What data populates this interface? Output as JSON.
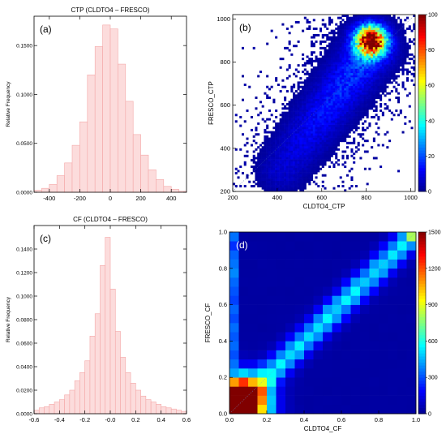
{
  "colorbar_colors": [
    "#00008f",
    "#0000ff",
    "#0080ff",
    "#00ffff",
    "#80ff80",
    "#ffff00",
    "#ff8000",
    "#ff0000",
    "#800000"
  ],
  "chart_data": [
    {
      "id": "a",
      "type": "bar",
      "panel_label": "(a)",
      "title": "CTP (CLDTO4 – FRESCO)",
      "xlabel": "",
      "ylabel": "Relative Frequency",
      "xlim": [
        -500,
        500
      ],
      "ylim": [
        0,
        0.18
      ],
      "xticks": [
        "-400",
        "-200",
        "0",
        "200",
        "400"
      ],
      "xtick_values": [
        -400,
        -200,
        0,
        200,
        400
      ],
      "yticks": [
        "0.0000",
        "0.0500",
        "0.1000",
        "0.1500"
      ],
      "ytick_values": [
        0,
        0.05,
        0.1,
        0.15
      ],
      "bin_width": 50,
      "bin_edges_start": -500,
      "values": [
        0.002,
        0.004,
        0.008,
        0.017,
        0.03,
        0.048,
        0.072,
        0.12,
        0.149,
        0.171,
        0.167,
        0.131,
        0.093,
        0.059,
        0.038,
        0.023,
        0.013,
        0.006,
        0.003,
        0.001
      ],
      "bar_color": "#fcdcdc",
      "bar_edge": "#f4a7a7"
    },
    {
      "id": "b",
      "type": "heatmap",
      "panel_label": "(b)",
      "xlabel": "CLDTO4_CTP",
      "ylabel": "FRESCO_CTP",
      "xlim": [
        200,
        1020
      ],
      "ylim": [
        200,
        1020
      ],
      "xticks": [
        "200",
        "400",
        "600",
        "800",
        "1000"
      ],
      "xtick_values": [
        200,
        400,
        600,
        800,
        1000
      ],
      "yticks": [
        "200",
        "400",
        "600",
        "800",
        "1000"
      ],
      "ytick_values": [
        200,
        400,
        600,
        800,
        1000
      ],
      "colorbar_ticks": [
        "0",
        "20",
        "40",
        "60",
        "80",
        "100"
      ],
      "colorbar_tick_values": [
        0,
        20,
        40,
        60,
        80,
        100
      ],
      "colorbar_range": [
        0,
        100
      ],
      "grid_cells": 82,
      "density_model": {
        "diagonal_ridge": {
          "from": [
            420,
            300
          ],
          "to": [
            820,
            860
          ],
          "peak": 20,
          "sigma": 70
        },
        "hotspot": {
          "x": 820,
          "y": 900,
          "peak": 105,
          "sigma": 45
        }
      }
    },
    {
      "id": "c",
      "type": "bar",
      "panel_label": "(c)",
      "title": "CF (CLDTO4 – FRESCO)",
      "xlabel": "",
      "ylabel": "Relative Frequency",
      "xlim": [
        -0.6,
        0.6
      ],
      "ylim": [
        0,
        0.16
      ],
      "xticks": [
        "-0.6",
        "-0.4",
        "-0.2",
        "-0.0",
        "0.2",
        "0.4",
        "0.6"
      ],
      "xtick_values": [
        -0.6,
        -0.4,
        -0.2,
        0,
        0.2,
        0.4,
        0.6
      ],
      "yticks": [
        "0.0000",
        "0.0200",
        "0.0400",
        "0.0600",
        "0.0800",
        "0.1000",
        "0.1200",
        "0.1400"
      ],
      "ytick_values": [
        0,
        0.02,
        0.04,
        0.06,
        0.08,
        0.1,
        0.12,
        0.14
      ],
      "bin_width": 0.04,
      "bin_edges_start": -0.6,
      "values": [
        0.003,
        0.005,
        0.006,
        0.008,
        0.01,
        0.012,
        0.016,
        0.02,
        0.028,
        0.035,
        0.045,
        0.066,
        0.085,
        0.126,
        0.15,
        0.106,
        0.07,
        0.048,
        0.035,
        0.026,
        0.02,
        0.015,
        0.012,
        0.01,
        0.008,
        0.006,
        0.005,
        0.004,
        0.003,
        0.002
      ],
      "bar_color": "#fcdcdc",
      "bar_edge": "#f4a7a7"
    },
    {
      "id": "d",
      "type": "heatmap",
      "panel_label": "(d)",
      "xlabel": "CLDTO4_CF",
      "ylabel": "FRESCO_CF",
      "xlim": [
        0,
        1
      ],
      "ylim": [
        0,
        1
      ],
      "xticks": [
        "0.0",
        "0.2",
        "0.4",
        "0.6",
        "0.8",
        "1.0"
      ],
      "xtick_values": [
        0,
        0.2,
        0.4,
        0.6,
        0.8,
        1
      ],
      "yticks": [
        "0.0",
        "0.2",
        "0.4",
        "0.6",
        "0.8",
        "1.0"
      ],
      "ytick_values": [
        0,
        0.2,
        0.4,
        0.6,
        0.8,
        1
      ],
      "colorbar_ticks": [
        "0",
        "300",
        "600",
        "900",
        "1200",
        "1500"
      ],
      "colorbar_tick_values": [
        0,
        300,
        600,
        900,
        1200,
        1500
      ],
      "colorbar_range": [
        0,
        1500
      ],
      "grid_cells": 20,
      "density_model": {
        "diagonal_ridge": {
          "peak": 480,
          "sigma": 0.045
        },
        "low_corner": {
          "x": 0.05,
          "y": 0.05,
          "peak": 2400,
          "sigma": 0.095
        },
        "left_column": {
          "x_max": 0.05,
          "value": 330
        },
        "top_right": {
          "x": 0.975,
          "y": 0.975,
          "value": 900
        }
      }
    }
  ]
}
